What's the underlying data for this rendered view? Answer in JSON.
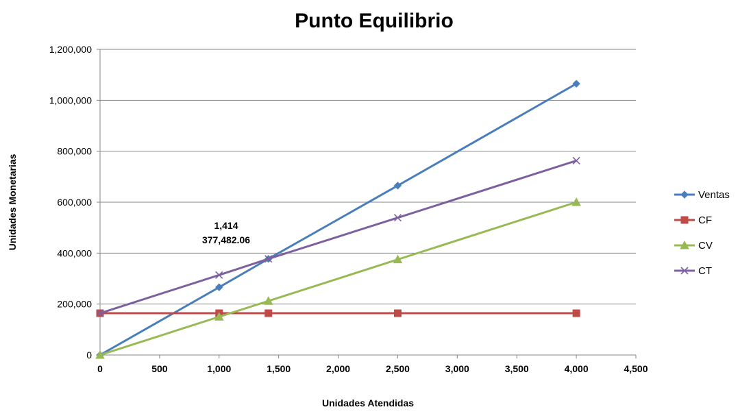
{
  "chart_data": {
    "type": "line",
    "title": "Punto Equilibrio",
    "xlabel": "Unidades Atendidas",
    "ylabel": "Unidades Monetarias",
    "xlim": [
      0,
      4500
    ],
    "ylim": [
      0,
      1200000
    ],
    "xticks": [
      0,
      500,
      1000,
      1500,
      2000,
      2500,
      3000,
      3500,
      4000,
      4500
    ],
    "yticks": [
      0,
      200000,
      400000,
      600000,
      800000,
      1000000,
      1200000
    ],
    "xtick_labels": [
      "0",
      "500",
      "1,000",
      "1,500",
      "2,000",
      "2,500",
      "3,000",
      "3,500",
      "4,000",
      "4,500"
    ],
    "ytick_labels": [
      "0",
      "200,000",
      "400,000",
      "600,000",
      "800,000",
      "1,000,000",
      "1,200,000"
    ],
    "grid": "horizontal",
    "legend_position": "right",
    "series": [
      {
        "name": "Ventas",
        "color": "#4a7ebb",
        "marker": "diamond",
        "x": [
          0,
          1000,
          1414,
          2500,
          4000
        ],
        "y": [
          0,
          266000,
          377482,
          665000,
          1065000
        ]
      },
      {
        "name": "CF",
        "color": "#be4b48",
        "marker": "square",
        "x": [
          0,
          1000,
          1414,
          2500,
          4000
        ],
        "y": [
          164000,
          164000,
          164000,
          164000,
          164000
        ]
      },
      {
        "name": "CV",
        "color": "#98b954",
        "marker": "triangle",
        "x": [
          0,
          1000,
          1414,
          2500,
          4000
        ],
        "y": [
          0,
          150000,
          212000,
          375000,
          600000
        ]
      },
      {
        "name": "CT",
        "color": "#7d60a0",
        "marker": "x",
        "x": [
          0,
          1000,
          1414,
          2500,
          4000
        ],
        "y": [
          164000,
          314000,
          377482,
          539000,
          763000
        ]
      }
    ],
    "annotation": {
      "line1": "1,414",
      "line2": "377,482.06",
      "x": 1414,
      "y": 377482.06
    }
  }
}
